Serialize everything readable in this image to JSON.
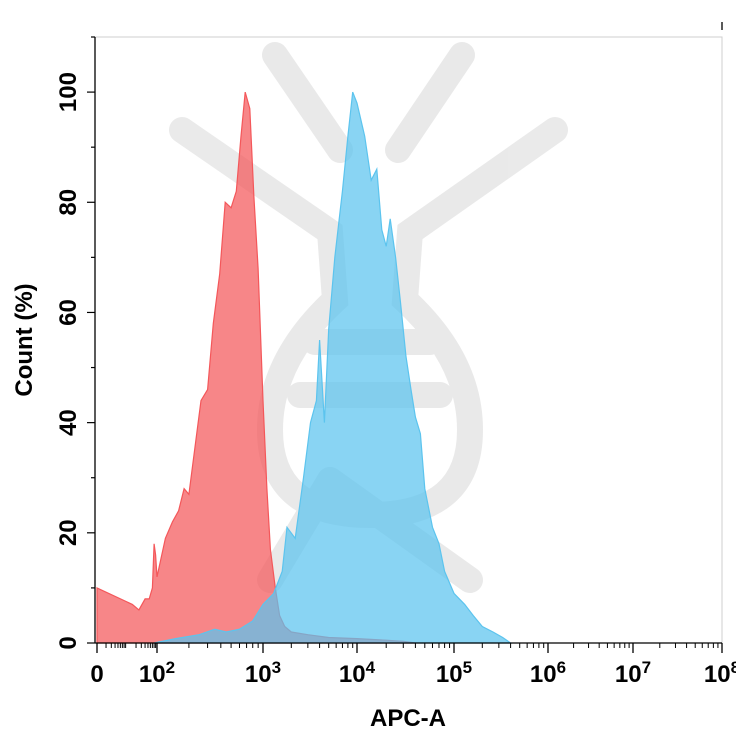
{
  "chart_data": {
    "type": "area",
    "title": "",
    "xlabel": "APC-A",
    "ylabel": "Count (%)",
    "x_scale": "log (with 0 at origin)",
    "xlim": [
      0,
      100000000
    ],
    "ylim": [
      0,
      110
    ],
    "x_ticks": [
      {
        "label": "0"
      },
      {
        "label": "10",
        "exp": "2"
      },
      {
        "label": "10",
        "exp": "3"
      },
      {
        "label": "10",
        "exp": "4"
      },
      {
        "label": "10",
        "exp": "5"
      },
      {
        "label": "10",
        "exp": "6"
      },
      {
        "label": "10",
        "exp": "7"
      },
      {
        "label": "10",
        "exp": "8"
      }
    ],
    "y_ticks": [
      "0",
      "20",
      "40",
      "60",
      "80",
      "100"
    ],
    "grid": false,
    "legend": "none",
    "series": [
      {
        "color": "#f4575a",
        "points": [
          [
            0,
            10
          ],
          [
            15,
            7
          ],
          [
            25,
            6
          ],
          [
            40,
            8
          ],
          [
            55,
            8
          ],
          [
            70,
            10
          ],
          [
            80,
            18
          ],
          [
            90,
            16
          ],
          [
            100,
            12
          ],
          [
            120,
            19
          ],
          [
            140,
            22
          ],
          [
            160,
            24
          ],
          [
            180,
            28
          ],
          [
            200,
            27
          ],
          [
            230,
            36
          ],
          [
            260,
            44
          ],
          [
            300,
            46
          ],
          [
            340,
            58
          ],
          [
            390,
            67
          ],
          [
            440,
            80
          ],
          [
            500,
            79
          ],
          [
            560,
            82
          ],
          [
            620,
            92
          ],
          [
            680,
            100
          ],
          [
            750,
            97
          ],
          [
            820,
            81
          ],
          [
            900,
            68
          ],
          [
            1000,
            44
          ],
          [
            1100,
            28
          ],
          [
            1200,
            17
          ],
          [
            1350,
            10
          ],
          [
            1500,
            5
          ],
          [
            1700,
            3
          ],
          [
            2000,
            2
          ],
          [
            3000,
            1.5
          ],
          [
            5000,
            1
          ],
          [
            10000,
            0.8
          ],
          [
            20000,
            0.5
          ],
          [
            30000,
            0.3
          ],
          [
            40000,
            0
          ]
        ]
      },
      {
        "color": "#5cc4ee",
        "points": [
          [
            80,
            0
          ],
          [
            150,
            0.8
          ],
          [
            250,
            1.5
          ],
          [
            350,
            2.5
          ],
          [
            450,
            2
          ],
          [
            600,
            2.5
          ],
          [
            800,
            4
          ],
          [
            1000,
            7
          ],
          [
            1300,
            9
          ],
          [
            1600,
            13
          ],
          [
            1800,
            21
          ],
          [
            2200,
            19
          ],
          [
            2700,
            30
          ],
          [
            3200,
            40
          ],
          [
            3700,
            44
          ],
          [
            4000,
            55
          ],
          [
            4500,
            40
          ],
          [
            5000,
            57
          ],
          [
            5800,
            70
          ],
          [
            7000,
            82
          ],
          [
            8000,
            92
          ],
          [
            9000,
            100
          ],
          [
            10000,
            98
          ],
          [
            12000,
            92
          ],
          [
            14000,
            84
          ],
          [
            16000,
            86
          ],
          [
            18000,
            75
          ],
          [
            20000,
            72
          ],
          [
            22000,
            77
          ],
          [
            25000,
            70
          ],
          [
            28000,
            62
          ],
          [
            32000,
            52
          ],
          [
            36000,
            46
          ],
          [
            40000,
            41
          ],
          [
            45000,
            38
          ],
          [
            50000,
            28
          ],
          [
            60000,
            21
          ],
          [
            70000,
            18
          ],
          [
            80000,
            13
          ],
          [
            100000,
            9
          ],
          [
            130000,
            7
          ],
          [
            160000,
            5
          ],
          [
            200000,
            3
          ],
          [
            260000,
            2
          ],
          [
            330000,
            1
          ],
          [
            400000,
            0
          ]
        ]
      }
    ]
  }
}
